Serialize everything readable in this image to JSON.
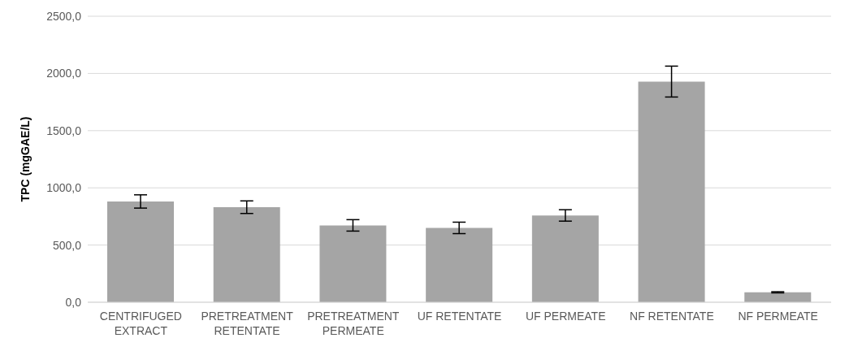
{
  "chart_data": {
    "type": "bar",
    "ylabel": "TPC (mgGAE/L)",
    "categories": [
      "CENTRIFUGED EXTRACT",
      "PRETREATMENT RETENTATE",
      "PRETREATMENT PERMEATE",
      "UF RETENTATE",
      "UF PERMEATE",
      "NF RETENTATE",
      "NF PERMEATE"
    ],
    "values": [
      881,
      831,
      672,
      650,
      759,
      1929,
      87
    ],
    "errors": [
      58,
      55,
      50,
      50,
      50,
      135,
      5
    ],
    "color": "#a5a5a5",
    "ylim": [
      0,
      2500
    ],
    "yticks": [
      {
        "value": 0,
        "label": "0,0"
      },
      {
        "value": 500,
        "label": "500,0"
      },
      {
        "value": 1000,
        "label": "1000,0"
      },
      {
        "value": 1500,
        "label": "1500,0"
      },
      {
        "value": 2000,
        "label": "2000,0"
      },
      {
        "value": 2500,
        "label": "2500,0"
      }
    ],
    "grid": "y"
  }
}
